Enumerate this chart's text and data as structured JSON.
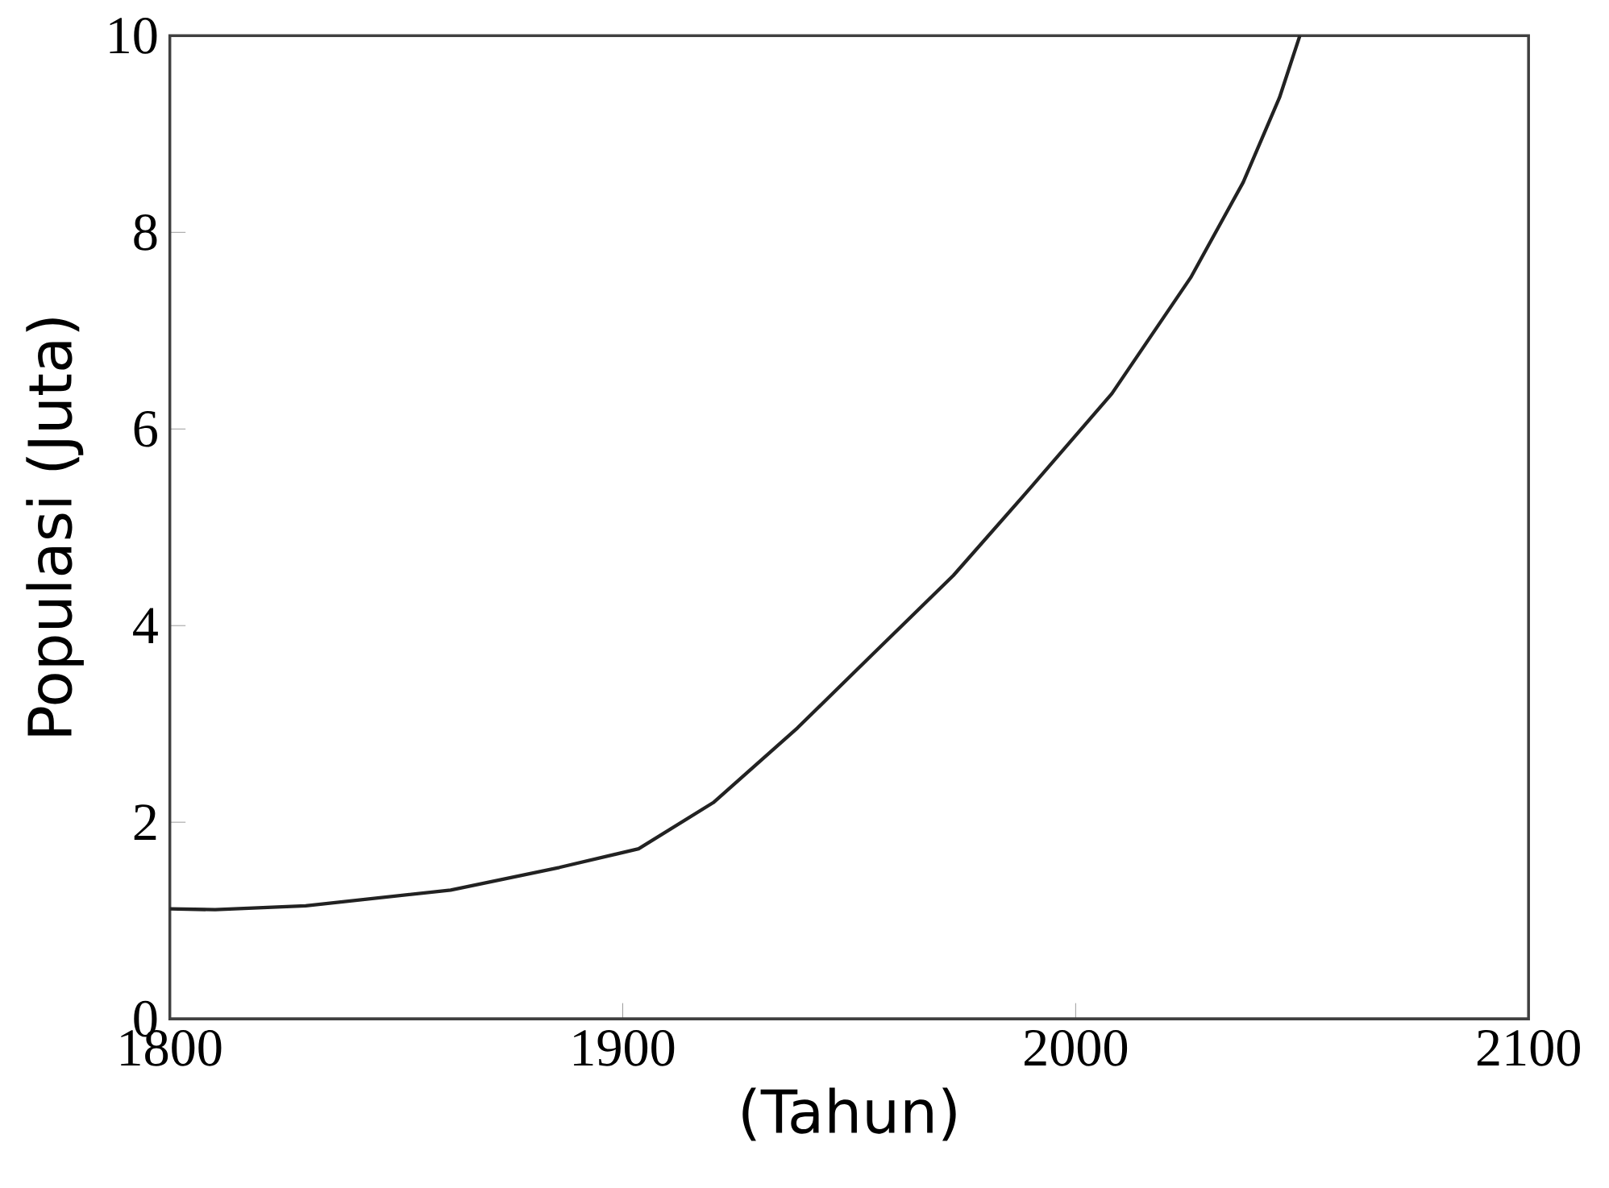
{
  "chart_data": {
    "type": "line",
    "xlabel": "(Tahun)",
    "ylabel": "Populasi (Juta)",
    "xlim": [
      1800,
      2100
    ],
    "xticks": [
      1800,
      1900,
      2000,
      2100
    ],
    "ylim": [
      0,
      10
    ],
    "yticks": [
      0,
      2,
      4,
      6,
      8,
      10
    ],
    "grid": false,
    "marker": "none",
    "line_style": "solid",
    "series": [
      {
        "color": "#222222",
        "x": [
          1800,
          1810,
          1830,
          1862,
          1886,
          1903.5,
          1920,
          1938.6,
          1955,
          1973,
          1990,
          2008,
          2025.4,
          2037,
          2045,
          2049.5
        ],
        "values": [
          1.12,
          1.11,
          1.15,
          1.31,
          1.54,
          1.73,
          2.2,
          2.96,
          3.7,
          4.51,
          5.4,
          6.36,
          7.54,
          8.51,
          9.37,
          10
        ]
      }
    ]
  }
}
